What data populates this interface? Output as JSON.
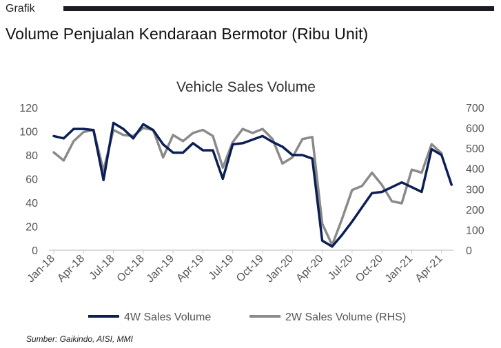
{
  "header": {
    "section_label": "Grafik",
    "title": "Volume Penjualan Kendaraan Bermotor (Ribu Unit)"
  },
  "source": "Sumber: Gaikindo, AISI, MMI",
  "colors": {
    "series_4w": "#0b1e55",
    "series_2w": "#8a8a8a"
  },
  "chart_data": {
    "type": "line",
    "title": "Vehicle Sales Volume",
    "x_tick_labels": [
      "Jan-18",
      "Apr-18",
      "Jul-18",
      "Oct-18",
      "Jan-19",
      "Apr-19",
      "Jul-19",
      "Oct-19",
      "Jan-20",
      "Apr-20",
      "Jul-20",
      "Oct-20",
      "Jan-21",
      "Apr-21"
    ],
    "x": [
      "2018-01",
      "2018-02",
      "2018-03",
      "2018-04",
      "2018-05",
      "2018-06",
      "2018-07",
      "2018-08",
      "2018-09",
      "2018-10",
      "2018-11",
      "2018-12",
      "2019-01",
      "2019-02",
      "2019-03",
      "2019-04",
      "2019-05",
      "2019-06",
      "2019-07",
      "2019-08",
      "2019-09",
      "2019-10",
      "2019-11",
      "2019-12",
      "2020-01",
      "2020-02",
      "2020-03",
      "2020-04",
      "2020-05",
      "2020-06",
      "2020-07",
      "2020-08",
      "2020-09",
      "2020-10",
      "2020-11",
      "2020-12",
      "2021-01",
      "2021-02",
      "2021-03",
      "2021-04",
      "2021-05"
    ],
    "y_left": {
      "ticks": [
        "0",
        "20",
        "40",
        "60",
        "80",
        "100",
        "120"
      ],
      "ylim": [
        0,
        120
      ]
    },
    "y_right": {
      "ticks": [
        "0",
        "100",
        "200",
        "300",
        "400",
        "500",
        "600",
        "700"
      ],
      "ylim": [
        0,
        700
      ]
    },
    "grid": false,
    "legend_position": "bottom",
    "series": [
      {
        "name": "4W Sales Volume",
        "axis": "left",
        "values": [
          96,
          94,
          102,
          102,
          101,
          59,
          107,
          102,
          94,
          106,
          101,
          89,
          82,
          82,
          90,
          84,
          84,
          60,
          89,
          90,
          93,
          96,
          91,
          87,
          80,
          80,
          77,
          8,
          3,
          13,
          24,
          36,
          48,
          49,
          53,
          57,
          53,
          49,
          85,
          80,
          55
        ]
      },
      {
        "name": "2W Sales Volume (RHS)",
        "axis": "right",
        "values": [
          480,
          440,
          535,
          580,
          590,
          390,
          590,
          565,
          560,
          600,
          590,
          455,
          565,
          535,
          575,
          590,
          560,
          405,
          530,
          595,
          575,
          595,
          545,
          425,
          455,
          545,
          555,
          130,
          25,
          155,
          295,
          315,
          380,
          320,
          240,
          230,
          395,
          380,
          520,
          475,
          null
        ]
      }
    ]
  }
}
